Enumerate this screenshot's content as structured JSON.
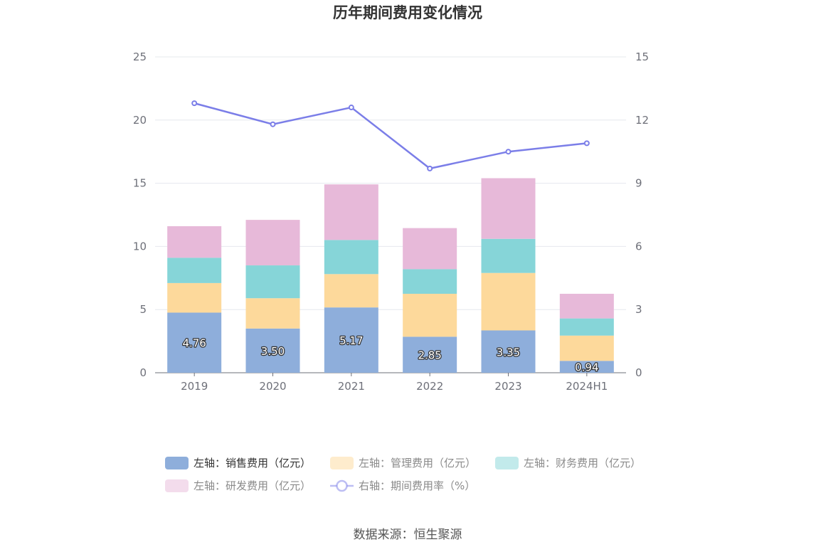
{
  "chart_data": {
    "type": "bar",
    "title": "历年期间费用变化情况",
    "categories": [
      "2019",
      "2020",
      "2021",
      "2022",
      "2023",
      "2024H1"
    ],
    "stacked": true,
    "left_axis": {
      "min": 0,
      "max": 25,
      "ticks": [
        0,
        5,
        10,
        15,
        20,
        25
      ]
    },
    "right_axis": {
      "min": 0,
      "max": 15,
      "ticks": [
        0,
        3,
        6,
        9,
        12,
        15
      ]
    },
    "series": [
      {
        "name": "左轴：销售费用（亿元）",
        "axis": "left",
        "type": "bar",
        "color": "#8eaedb",
        "values": [
          4.76,
          3.5,
          5.17,
          2.85,
          3.35,
          0.94
        ],
        "labels": [
          "4.76",
          "3.50",
          "5.17",
          "2.85",
          "3.35",
          "0.94"
        ]
      },
      {
        "name": "左轴：管理费用（亿元）",
        "axis": "left",
        "type": "bar",
        "color": "#fdd99b",
        "values": [
          2.34,
          2.4,
          2.64,
          3.4,
          4.55,
          2.0
        ]
      },
      {
        "name": "左轴：财务费用（亿元）",
        "axis": "left",
        "type": "bar",
        "color": "#86d5d8",
        "values": [
          2.0,
          2.6,
          2.7,
          1.95,
          2.7,
          1.36
        ]
      },
      {
        "name": "左轴：研发费用（亿元）",
        "axis": "left",
        "type": "bar",
        "color": "#e7b9d9",
        "values": [
          2.5,
          3.6,
          4.4,
          3.25,
          4.8,
          1.95
        ]
      },
      {
        "name": "右轴：期间费用率（%）",
        "axis": "right",
        "type": "line",
        "color": "#7b7ee8",
        "values": [
          12.8,
          11.8,
          12.6,
          9.7,
          10.5,
          10.9
        ]
      }
    ],
    "legend_position": "bottom",
    "source": "数据来源：恒生聚源"
  }
}
